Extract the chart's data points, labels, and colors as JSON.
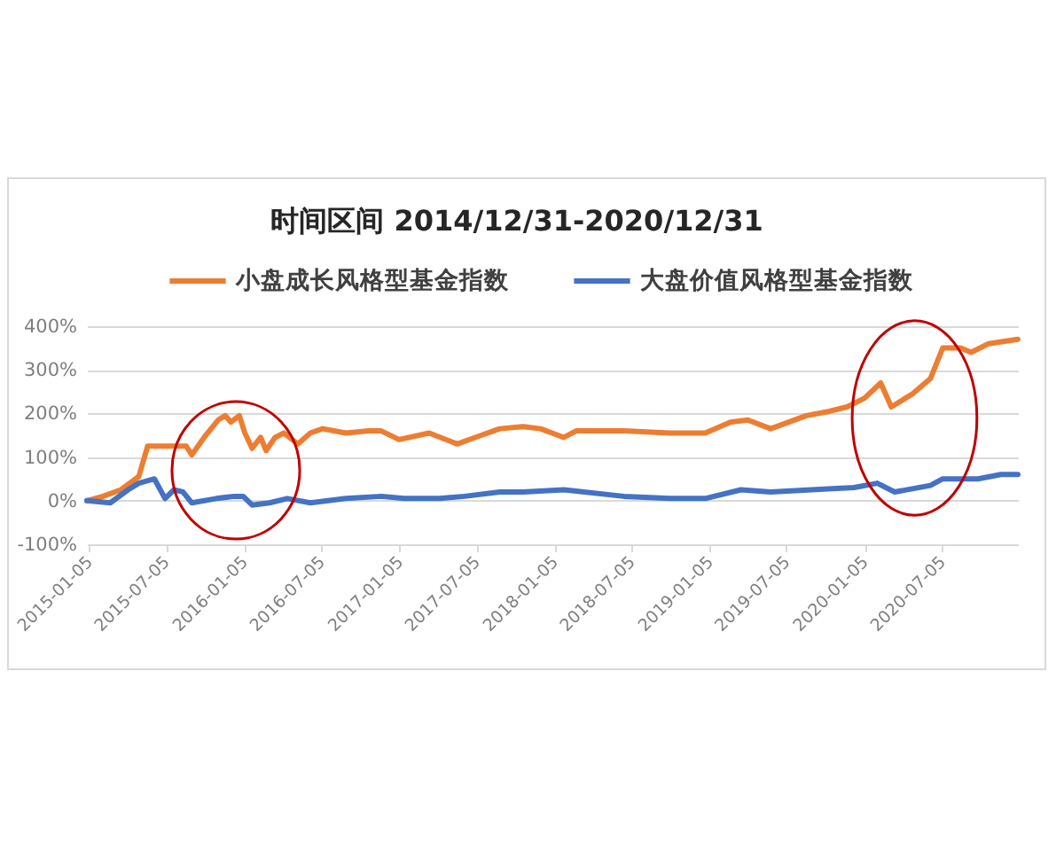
{
  "chart_data": {
    "type": "line",
    "title": "时间区间 2014/12/31-2020/12/31",
    "xlim": [
      "2014-12-31",
      "2020-12-31"
    ],
    "xticks": [
      "2015-01-05",
      "2015-07-05",
      "2016-01-05",
      "2016-07-05",
      "2017-01-05",
      "2017-07-05",
      "2018-01-05",
      "2018-07-05",
      "2019-01-05",
      "2019-07-05",
      "2020-01-05",
      "2020-07-05"
    ],
    "ylim": [
      -100,
      400
    ],
    "yticks": [
      {
        "value": -100,
        "label": "-100%"
      },
      {
        "value": 0,
        "label": "0%"
      },
      {
        "value": 100,
        "label": "100%"
      },
      {
        "value": 200,
        "label": "200%"
      },
      {
        "value": 300,
        "label": "300%"
      },
      {
        "value": 400,
        "label": "400%"
      }
    ],
    "grid": "y",
    "legend": "top",
    "series": [
      {
        "name": "小盘成长风格型基金指数",
        "color": "#ed7d31",
        "x": [
          "2014-12-31",
          "2015-02-07",
          "2015-03-21",
          "2015-05-02",
          "2015-05-23",
          "2015-08-22",
          "2015-09-04",
          "2015-10-03",
          "2015-11-05",
          "2015-11-22",
          "2015-12-05",
          "2015-12-25",
          "2016-01-07",
          "2016-01-24",
          "2016-02-13",
          "2016-02-26",
          "2016-03-18",
          "2016-04-08",
          "2016-05-11",
          "2016-06-09",
          "2016-07-08",
          "2016-09-01",
          "2016-10-25",
          "2016-11-23",
          "2017-01-04",
          "2017-03-16",
          "2017-05-21",
          "2017-07-02",
          "2017-08-29",
          "2017-10-23",
          "2017-12-03",
          "2018-01-27",
          "2018-02-25",
          "2018-06-17",
          "2018-10-04",
          "2018-12-26",
          "2019-02-23",
          "2019-04-05",
          "2019-05-29",
          "2019-08-21",
          "2019-10-14",
          "2019-11-25",
          "2020-01-05",
          "2020-02-12",
          "2020-03-08",
          "2020-04-27",
          "2020-06-08",
          "2020-07-07",
          "2020-08-18",
          "2020-09-12",
          "2020-10-23",
          "2020-12-31"
        ],
        "values": [
          0,
          10,
          25,
          55,
          125,
          125,
          105,
          145,
          185,
          195,
          180,
          195,
          155,
          120,
          145,
          115,
          145,
          155,
          130,
          155,
          165,
          155,
          160,
          160,
          140,
          155,
          130,
          145,
          165,
          170,
          165,
          145,
          160,
          160,
          155,
          155,
          180,
          185,
          165,
          195,
          205,
          215,
          235,
          270,
          215,
          245,
          280,
          350,
          350,
          340,
          360,
          370
        ]
      },
      {
        "name": "大盘价值风格型基金指数",
        "color": "#4472c4",
        "x": [
          "2014-12-31",
          "2015-02-24",
          "2015-04-07",
          "2015-05-02",
          "2015-06-08",
          "2015-07-03",
          "2015-07-24",
          "2015-08-14",
          "2015-09-04",
          "2015-11-01",
          "2015-12-13",
          "2016-01-03",
          "2016-01-24",
          "2016-03-05",
          "2016-04-16",
          "2016-06-09",
          "2016-09-01",
          "2016-11-23",
          "2017-01-16",
          "2017-04-10",
          "2017-06-07",
          "2017-08-29",
          "2017-10-23",
          "2018-01-27",
          "2018-06-17",
          "2018-10-04",
          "2018-12-26",
          "2019-03-20",
          "2019-05-29",
          "2019-09-02",
          "2019-12-11",
          "2020-02-04",
          "2020-03-16",
          "2020-06-08",
          "2020-07-07",
          "2020-09-28",
          "2020-11-21",
          "2020-12-31"
        ],
        "values": [
          0,
          -5,
          25,
          40,
          50,
          5,
          25,
          20,
          -5,
          5,
          10,
          10,
          -10,
          -5,
          5,
          -5,
          5,
          10,
          5,
          5,
          10,
          20,
          20,
          25,
          10,
          5,
          5,
          25,
          20,
          25,
          30,
          40,
          20,
          35,
          50,
          50,
          60,
          60
        ]
      }
    ]
  }
}
